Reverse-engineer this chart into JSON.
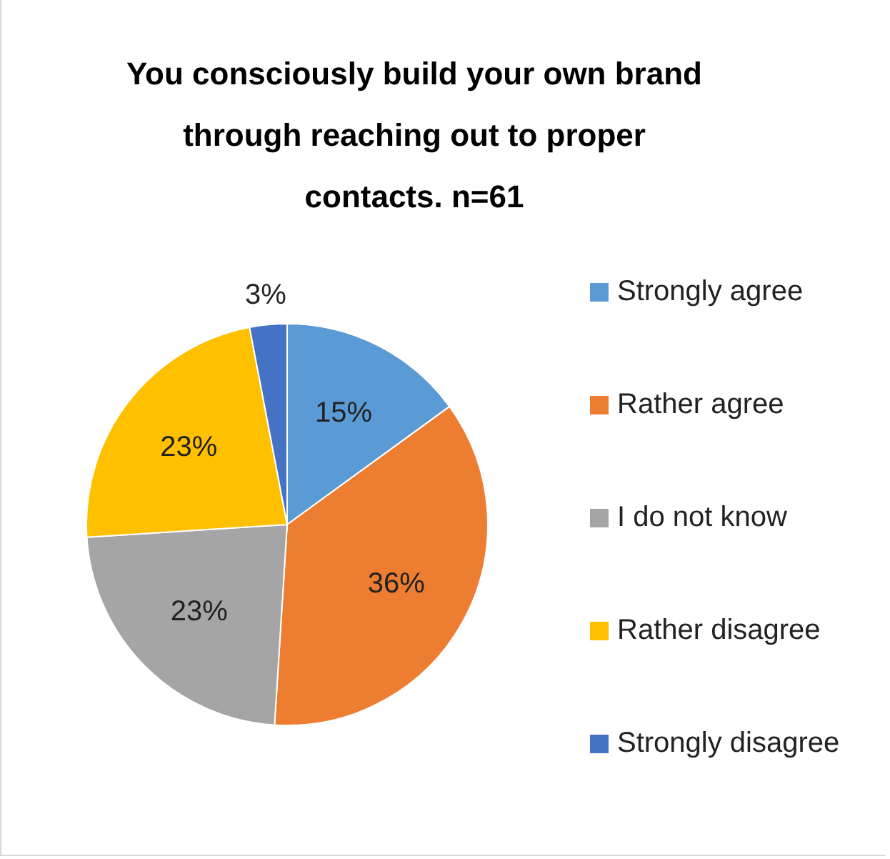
{
  "chart_data": {
    "type": "pie",
    "title": "You consciously build your own brand through reaching out to proper contacts. n=61",
    "categories": [
      "Strongly agree",
      "Rather agree",
      "I do not know",
      "Rather disagree",
      "Strongly disagree"
    ],
    "values": [
      15,
      36,
      23,
      23,
      3
    ],
    "colors": [
      "#5b9bd5",
      "#ed7d31",
      "#a5a5a5",
      "#ffc000",
      "#4472c4"
    ],
    "value_labels": [
      "15%",
      "36%",
      "23%",
      "23%",
      "3%"
    ],
    "legend": "right"
  }
}
